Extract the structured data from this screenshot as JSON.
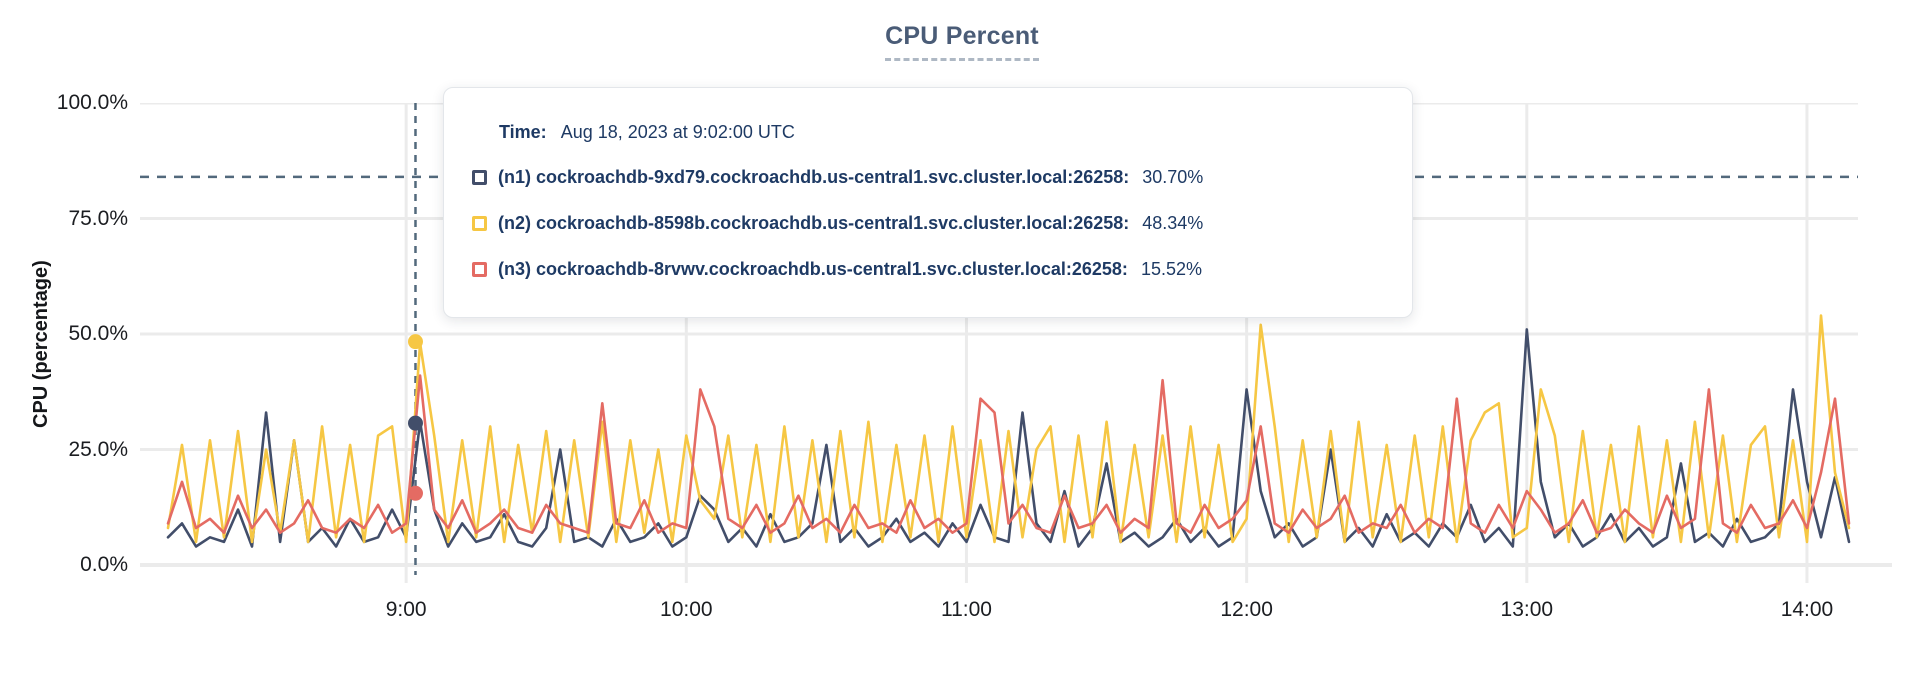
{
  "title": "CPU Percent",
  "tooltip": {
    "time_label": "Time:",
    "time_value": "Aug 18, 2023 at 9:02:00 UTC"
  },
  "colors": {
    "series_n1": "#424e6a",
    "series_n2": "#f6c744",
    "series_n3": "#e46b63",
    "guide_dashed": "#52697c",
    "gridline": "#ebebeb",
    "axis_text": "#1b1d21",
    "title_text": "#4a5c77",
    "tooltip_text": "#1e3a64"
  },
  "chart_data": {
    "type": "line",
    "title": "CPU Percent",
    "ylabel": "CPU (percentage)",
    "xlabel": "",
    "ylim": [
      0,
      100
    ],
    "grid": true,
    "legend_position": "tooltip-overlay",
    "y_ticks": [
      {
        "label": "0.0%",
        "value": 0
      },
      {
        "label": "25.0%",
        "value": 25
      },
      {
        "label": "50.0%",
        "value": 50
      },
      {
        "label": "75.0%",
        "value": 75
      },
      {
        "label": "100.0%",
        "value": 100
      }
    ],
    "x_ticks": [
      {
        "label": "9:00",
        "minutes": 51
      },
      {
        "label": "10:00",
        "minutes": 111
      },
      {
        "label": "11:00",
        "minutes": 171
      },
      {
        "label": "12:00",
        "minutes": 231
      },
      {
        "label": "13:00",
        "minutes": 291
      },
      {
        "label": "14:00",
        "minutes": 351
      }
    ],
    "x_start_time": "8:09",
    "x_end_time": "14:09",
    "x_total_minutes": 360,
    "sample_step_minutes": 3,
    "threshold_percent": 84,
    "hover": {
      "minutes": 53,
      "time": "Aug 18, 2023 at 9:02:00 UTC",
      "values": [
        30.7,
        48.34,
        15.52
      ]
    },
    "series": [
      {
        "id": "n1",
        "label": "(n1) cockroachdb-9xd79.cockroachdb.us-central1.svc.cluster.local:26258:",
        "display_value": "30.70%",
        "color": "#424e6a",
        "values": [
          6,
          9,
          4,
          6,
          5,
          12,
          4,
          33,
          5,
          27,
          5,
          8,
          4,
          10,
          5,
          6,
          12,
          6,
          31,
          12,
          4,
          9,
          5,
          6,
          11,
          5,
          4,
          8,
          25,
          5,
          6,
          4,
          10,
          5,
          6,
          9,
          4,
          6,
          15,
          12,
          5,
          8,
          4,
          11,
          5,
          6,
          9,
          26,
          5,
          8,
          4,
          6,
          10,
          5,
          7,
          4,
          9,
          5,
          13,
          6,
          5,
          33,
          9,
          5,
          16,
          4,
          8,
          22,
          5,
          7,
          4,
          6,
          10,
          5,
          8,
          4,
          6,
          38,
          16,
          6,
          9,
          4,
          6,
          25,
          5,
          8,
          4,
          11,
          5,
          7,
          4,
          9,
          6,
          13,
          5,
          8,
          4,
          51,
          18,
          6,
          9,
          4,
          6,
          11,
          5,
          8,
          4,
          6,
          22,
          5,
          7,
          4,
          10,
          5,
          6,
          9,
          38,
          18,
          6,
          19,
          5
        ]
      },
      {
        "id": "n2",
        "label": "(n2) cockroachdb-8598b.cockroachdb.us-central1.svc.cluster.local:26258:",
        "display_value": "48.34%",
        "color": "#f6c744",
        "values": [
          8,
          26,
          5,
          27,
          6,
          29,
          5,
          25,
          7,
          27,
          5,
          30,
          6,
          26,
          5,
          28,
          30,
          5,
          48,
          28,
          5,
          27,
          6,
          30,
          5,
          26,
          7,
          29,
          5,
          27,
          6,
          31,
          5,
          27,
          7,
          25,
          5,
          28,
          14,
          10,
          28,
          6,
          26,
          5,
          30,
          6,
          27,
          5,
          29,
          6,
          31,
          5,
          26,
          6,
          28,
          5,
          30,
          6,
          27,
          5,
          29,
          6,
          25,
          30,
          5,
          28,
          6,
          31,
          5,
          26,
          6,
          28,
          5,
          30,
          6,
          26,
          5,
          10,
          52,
          30,
          5,
          27,
          6,
          29,
          5,
          31,
          6,
          26,
          5,
          28,
          6,
          30,
          5,
          27,
          33,
          35,
          6,
          8,
          38,
          28,
          5,
          29,
          6,
          26,
          5,
          30,
          6,
          27,
          5,
          31,
          6,
          28,
          5,
          26,
          30,
          6,
          27,
          5,
          54,
          20,
          8
        ]
      },
      {
        "id": "n3",
        "label": "(n3) cockroachdb-8rvwv.cockroachdb.us-central1.svc.cluster.local:26258:",
        "display_value": "15.52%",
        "color": "#e46b63",
        "values": [
          9,
          18,
          8,
          10,
          7,
          15,
          8,
          12,
          7,
          9,
          14,
          8,
          7,
          10,
          8,
          13,
          7,
          9,
          41,
          12,
          8,
          14,
          7,
          9,
          12,
          8,
          7,
          13,
          9,
          8,
          7,
          35,
          9,
          8,
          14,
          7,
          9,
          8,
          38,
          30,
          10,
          8,
          13,
          7,
          9,
          15,
          8,
          10,
          7,
          13,
          8,
          9,
          7,
          14,
          8,
          10,
          7,
          9,
          36,
          33,
          9,
          13,
          8,
          7,
          15,
          8,
          9,
          13,
          7,
          10,
          8,
          40,
          9,
          7,
          13,
          8,
          10,
          14,
          30,
          9,
          7,
          12,
          8,
          10,
          15,
          7,
          9,
          8,
          13,
          7,
          10,
          8,
          36,
          9,
          7,
          13,
          8,
          16,
          12,
          7,
          9,
          14,
          7,
          8,
          12,
          9,
          7,
          15,
          8,
          10,
          38,
          9,
          7,
          13,
          8,
          9,
          14,
          8,
          20,
          36,
          9
        ]
      }
    ]
  }
}
